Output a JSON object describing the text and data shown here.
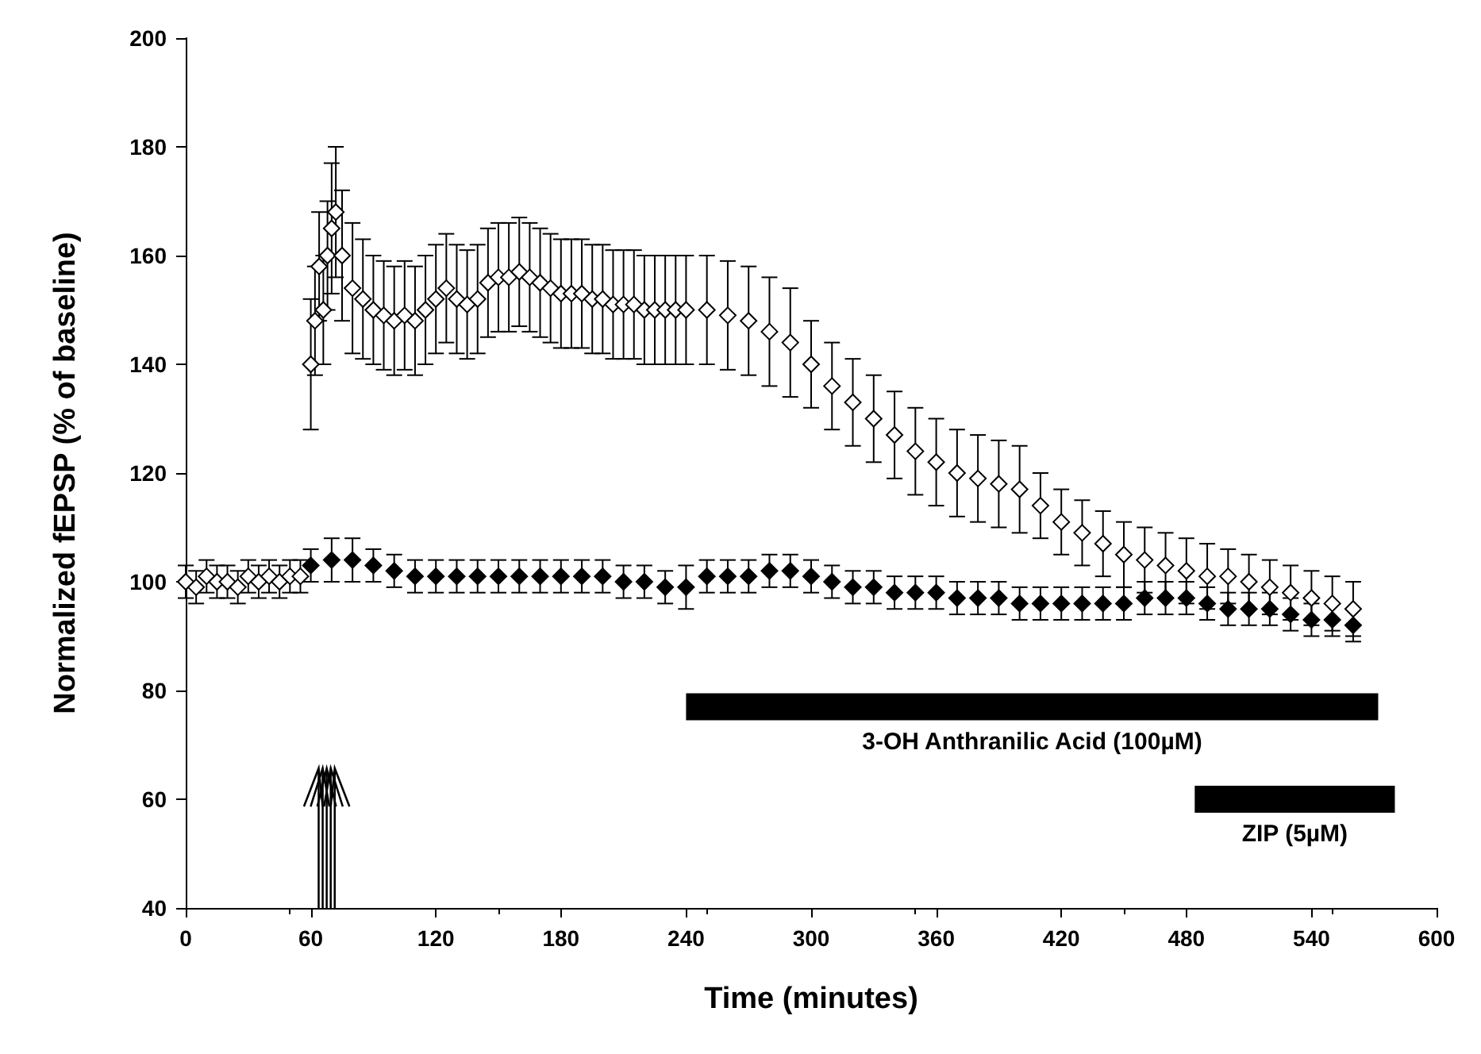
{
  "chart_data": {
    "type": "scatter",
    "xlabel": "Time (minutes)",
    "ylabel": "Normalized fEPSP (% of baseline)",
    "xlim": [
      0,
      600
    ],
    "xticks": [
      0,
      60,
      120,
      180,
      240,
      300,
      360,
      420,
      480,
      540,
      600
    ],
    "ylim": [
      40,
      200
    ],
    "yticks": [
      40,
      60,
      80,
      100,
      120,
      140,
      160,
      180,
      200
    ],
    "grid": false,
    "legend": false,
    "marker": "diamond",
    "series": [
      {
        "color": "#000000",
        "x": [
          60,
          70,
          80,
          90,
          100,
          110,
          120,
          130,
          140,
          150,
          160,
          170,
          180,
          190,
          200,
          210,
          220,
          230,
          240,
          250,
          260,
          270,
          280,
          290,
          300,
          310,
          320,
          330,
          340,
          350,
          360,
          370,
          380,
          390,
          400,
          410,
          420,
          430,
          440,
          450,
          460,
          470,
          480,
          490,
          500,
          510,
          520,
          530,
          540,
          550,
          560
        ],
        "values": [
          103,
          104,
          104,
          103,
          102,
          101,
          101,
          101,
          101,
          101,
          101,
          101,
          101,
          101,
          101,
          100,
          100,
          99,
          99,
          101,
          101,
          101,
          102,
          102,
          101,
          100,
          99,
          99,
          98,
          98,
          98,
          97,
          97,
          97,
          96,
          96,
          96,
          96,
          96,
          96,
          97,
          97,
          97,
          96,
          95,
          95,
          95,
          94,
          93,
          93,
          92
        ],
        "errors": [
          3,
          4,
          4,
          3,
          3,
          3,
          3,
          3,
          3,
          3,
          3,
          3,
          3,
          3,
          3,
          3,
          3,
          3,
          4,
          3,
          3,
          3,
          3,
          3,
          3,
          3,
          3,
          3,
          3,
          3,
          3,
          3,
          3,
          3,
          3,
          3,
          3,
          3,
          3,
          3,
          3,
          3,
          3,
          3,
          3,
          3,
          3,
          3,
          3,
          3,
          3
        ]
      },
      {
        "color": "#ffffff",
        "x": [
          0,
          5,
          10,
          15,
          20,
          25,
          30,
          35,
          40,
          45,
          50,
          55,
          60,
          62,
          64,
          66,
          68,
          70,
          72,
          75,
          80,
          85,
          90,
          95,
          100,
          105,
          110,
          115,
          120,
          125,
          130,
          135,
          140,
          145,
          150,
          155,
          160,
          165,
          170,
          175,
          180,
          185,
          190,
          195,
          200,
          205,
          210,
          215,
          220,
          225,
          230,
          235,
          240,
          250,
          260,
          270,
          280,
          290,
          300,
          310,
          320,
          330,
          340,
          350,
          360,
          370,
          380,
          390,
          400,
          410,
          420,
          430,
          440,
          450,
          460,
          470,
          480,
          490,
          500,
          510,
          520,
          530,
          540,
          550,
          560
        ],
        "values": [
          100,
          99,
          101,
          100,
          100,
          99,
          101,
          100,
          101,
          100,
          101,
          101,
          140,
          148,
          158,
          150,
          160,
          165,
          168,
          160,
          154,
          152,
          150,
          149,
          148,
          149,
          148,
          150,
          152,
          154,
          152,
          151,
          152,
          155,
          156,
          156,
          157,
          156,
          155,
          154,
          153,
          153,
          153,
          152,
          152,
          151,
          151,
          151,
          150,
          150,
          150,
          150,
          150,
          150,
          149,
          148,
          146,
          144,
          140,
          136,
          133,
          130,
          127,
          124,
          122,
          120,
          119,
          118,
          117,
          114,
          111,
          109,
          107,
          105,
          104,
          103,
          102,
          101,
          101,
          100,
          99,
          98,
          97,
          96,
          95
        ],
        "errors": [
          3,
          3,
          3,
          3,
          3,
          3,
          3,
          3,
          3,
          3,
          3,
          3,
          12,
          10,
          10,
          10,
          10,
          12,
          12,
          12,
          12,
          11,
          10,
          10,
          10,
          10,
          10,
          10,
          10,
          10,
          10,
          10,
          10,
          10,
          10,
          10,
          10,
          10,
          10,
          10,
          10,
          10,
          10,
          10,
          10,
          10,
          10,
          10,
          10,
          10,
          10,
          10,
          10,
          10,
          10,
          10,
          10,
          10,
          8,
          8,
          8,
          8,
          8,
          8,
          8,
          8,
          8,
          8,
          8,
          6,
          6,
          6,
          6,
          6,
          6,
          6,
          6,
          6,
          5,
          5,
          5,
          5,
          5,
          5,
          5
        ]
      },
      {
        "type": "line",
        "name": "3-OH Anthranilic Acid (100µM)",
        "marker": "none",
        "color": "#000000",
        "x": [
          240,
          572
        ],
        "values": [
          77,
          77
        ]
      },
      {
        "type": "line",
        "name": "ZIP (5µM)",
        "marker": "none",
        "color": "#000000",
        "x": [
          484,
          580
        ],
        "values": [
          60,
          60
        ]
      }
    ]
  }
}
